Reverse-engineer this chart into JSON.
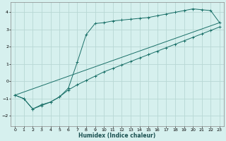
{
  "xlabel": "Humidex (Indice chaleur)",
  "bg_color": "#d6f0ee",
  "grid_color": "#b8d8d4",
  "line_color": "#1a7068",
  "xlim": [
    -0.5,
    23.5
  ],
  "ylim": [
    -2.6,
    4.6
  ],
  "xticks": [
    0,
    1,
    2,
    3,
    4,
    5,
    6,
    7,
    8,
    9,
    10,
    11,
    12,
    13,
    14,
    15,
    16,
    17,
    18,
    19,
    20,
    21,
    22,
    23
  ],
  "yticks": [
    -2,
    -1,
    0,
    1,
    2,
    3,
    4
  ],
  "series1_x": [
    0,
    1,
    2,
    3,
    4,
    5,
    6,
    7,
    8,
    9,
    10,
    11,
    12,
    13,
    14,
    15,
    16,
    17,
    18,
    19,
    20,
    21,
    22,
    23
  ],
  "series1_y": [
    -0.8,
    -1.0,
    -1.6,
    -1.4,
    -1.2,
    -0.9,
    -0.5,
    -0.2,
    0.05,
    0.3,
    0.55,
    0.75,
    0.95,
    1.15,
    1.35,
    1.55,
    1.75,
    1.95,
    2.15,
    2.35,
    2.55,
    2.75,
    2.95,
    3.15
  ],
  "series2_x": [
    0,
    1,
    2,
    3,
    4,
    5,
    6,
    7,
    8,
    9,
    10,
    11,
    12,
    13,
    14,
    15,
    16,
    17,
    18,
    19,
    20,
    21,
    22,
    23
  ],
  "series2_y": [
    -0.8,
    -1.0,
    -1.6,
    -1.35,
    -1.2,
    -0.9,
    -0.4,
    1.1,
    2.7,
    3.35,
    3.4,
    3.5,
    3.55,
    3.6,
    3.65,
    3.7,
    3.8,
    3.9,
    4.0,
    4.1,
    4.2,
    4.15,
    4.1,
    3.4
  ],
  "series3_x": [
    0,
    23
  ],
  "series3_y": [
    -0.8,
    3.4
  ]
}
